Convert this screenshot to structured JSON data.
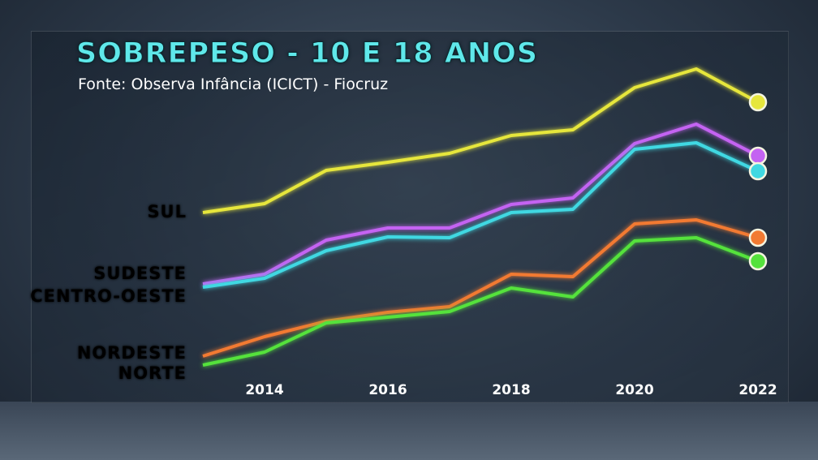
{
  "chart_data": {
    "type": "line",
    "title": "SOBREPESO - 10 E 18 ANOS",
    "subtitle": "Fonte: Observa Infância (ICICT) - Fiocruz",
    "x": [
      2013,
      2014,
      2015,
      2016,
      2017,
      2018,
      2019,
      2020,
      2021,
      2022
    ],
    "x_tick_labels": [
      "2014",
      "2016",
      "2018",
      "2020",
      "2022"
    ],
    "y_axis_shown": false,
    "ylim": [
      0,
      40
    ],
    "grid": false,
    "series": [
      {
        "name": "SUL",
        "color": "#e6e63c",
        "values": [
          20.8,
          21.9,
          26.0,
          27.0,
          28.1,
          30.3,
          31.0,
          36.2,
          38.5,
          34.4
        ]
      },
      {
        "name": "SUDESTE",
        "color": "#c463f2",
        "values": [
          12.0,
          13.2,
          17.4,
          18.9,
          18.9,
          21.8,
          22.6,
          29.3,
          31.7,
          27.8
        ]
      },
      {
        "name": "CENTRO-OESTE",
        "color": "#40d8e2",
        "values": [
          11.6,
          12.7,
          16.1,
          17.8,
          17.7,
          20.8,
          21.2,
          28.6,
          29.4,
          25.9
        ]
      },
      {
        "name": "NORDESTE",
        "color": "#f27a32",
        "values": [
          3.1,
          5.5,
          7.4,
          8.5,
          9.2,
          13.2,
          12.9,
          19.4,
          19.9,
          17.7
        ]
      },
      {
        "name": "NORTE",
        "color": "#55e23c",
        "values": [
          2.0,
          3.6,
          7.2,
          7.9,
          8.6,
          11.5,
          10.4,
          17.3,
          17.7,
          14.8
        ]
      }
    ]
  }
}
